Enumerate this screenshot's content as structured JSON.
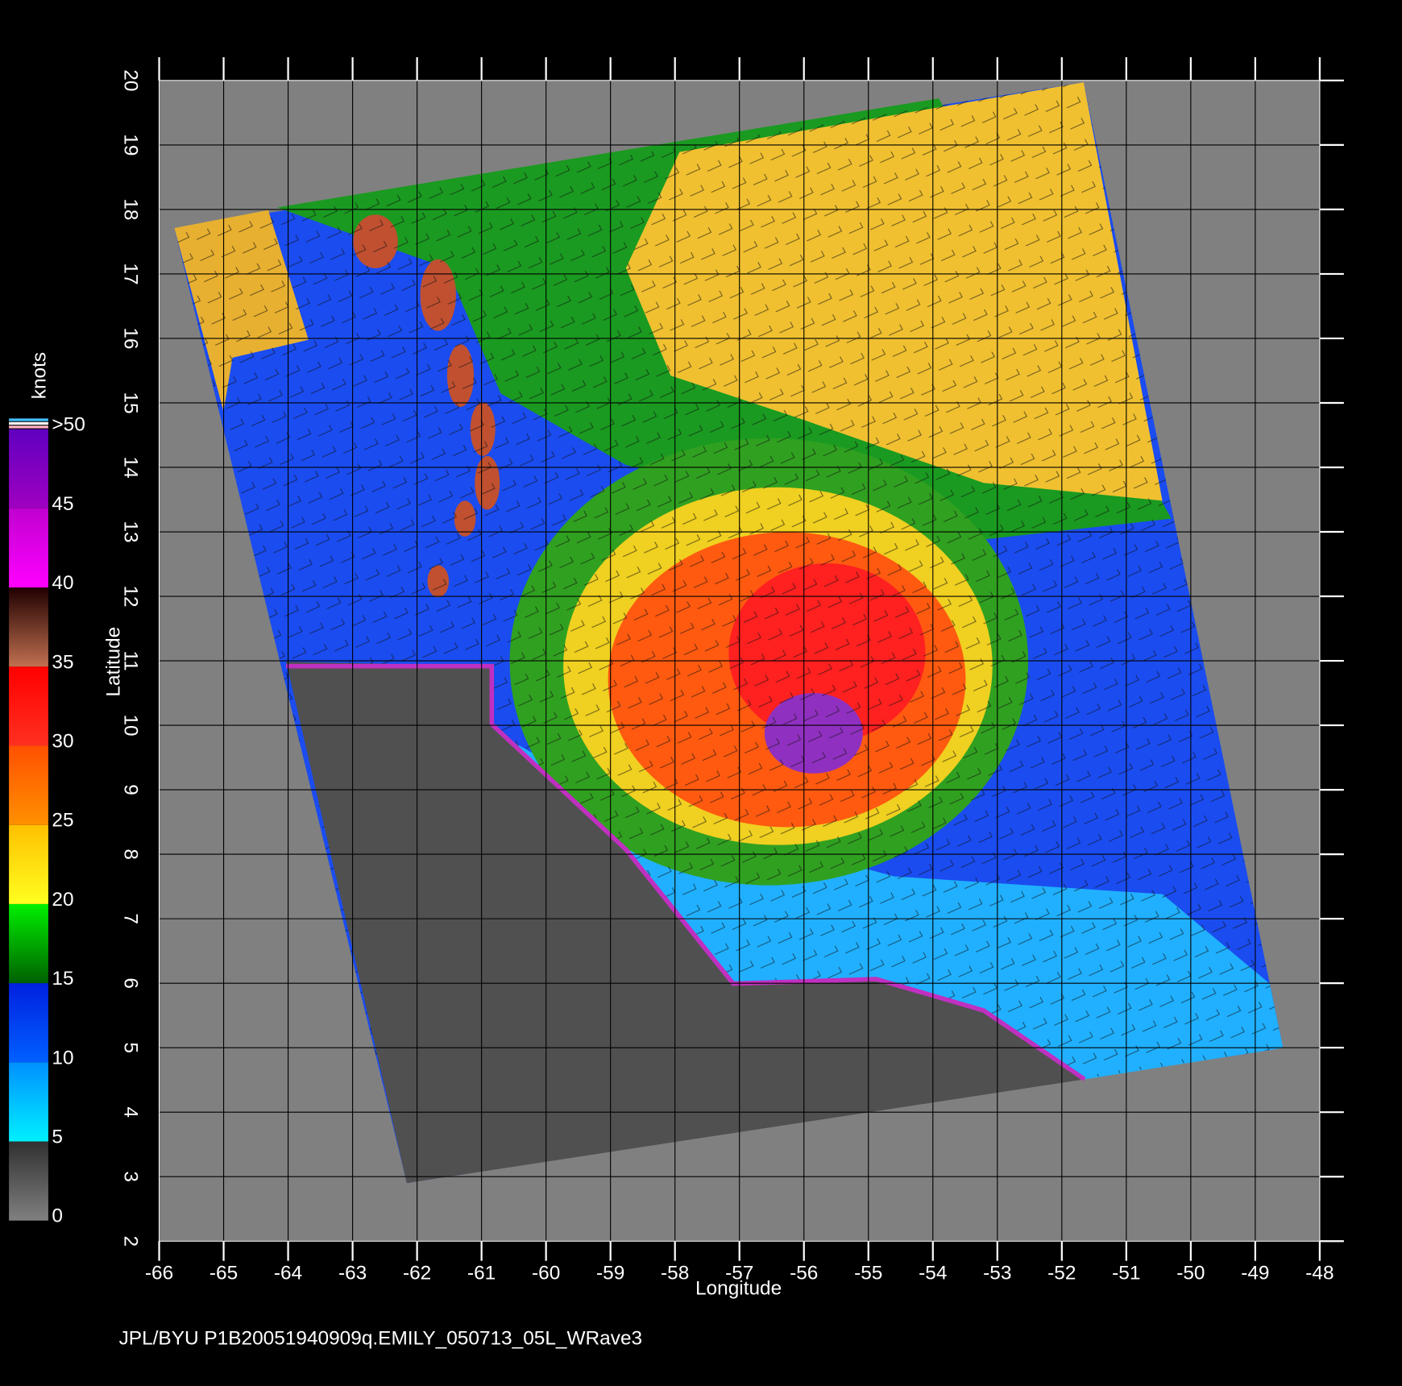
{
  "map": {
    "xlabel": "Longitude",
    "ylabel": "Latitude",
    "xlim": [
      -66,
      -48
    ],
    "ylim": [
      2,
      20
    ],
    "xticks": [
      -66,
      -65,
      -64,
      -63,
      -62,
      -61,
      -60,
      -59,
      -58,
      -57,
      -56,
      -55,
      -54,
      -53,
      -52,
      -51,
      -50,
      -49,
      -48
    ],
    "yticks": [
      2,
      3,
      4,
      5,
      6,
      7,
      8,
      9,
      10,
      11,
      12,
      13,
      14,
      15,
      16,
      17,
      18,
      19,
      20
    ]
  },
  "colorbar": {
    "label": "knots",
    "ticks": [
      0,
      5,
      10,
      15,
      20,
      25,
      30,
      35,
      40,
      45,
      {
        "value": 50,
        "label": ">50"
      }
    ],
    "segment_colors": [
      [
        "#808080",
        "#303030"
      ],
      [
        "#00f0ff",
        "#0090ff"
      ],
      [
        "#0060ff",
        "#0020e0"
      ],
      [
        "#006000",
        "#00f000"
      ],
      [
        "#ffff20",
        "#ffc000"
      ],
      [
        "#ff9000",
        "#ff5000"
      ],
      [
        "#ff3020",
        "#ff0000"
      ],
      [
        "#c07050",
        "#200000"
      ],
      [
        "#ff00ff",
        "#c000d0"
      ],
      [
        "#a000c0",
        "#6000c0"
      ]
    ]
  },
  "footer": "JPL/BYU  P1B20051940909q.EMILY_050713_05L_WRave3"
}
